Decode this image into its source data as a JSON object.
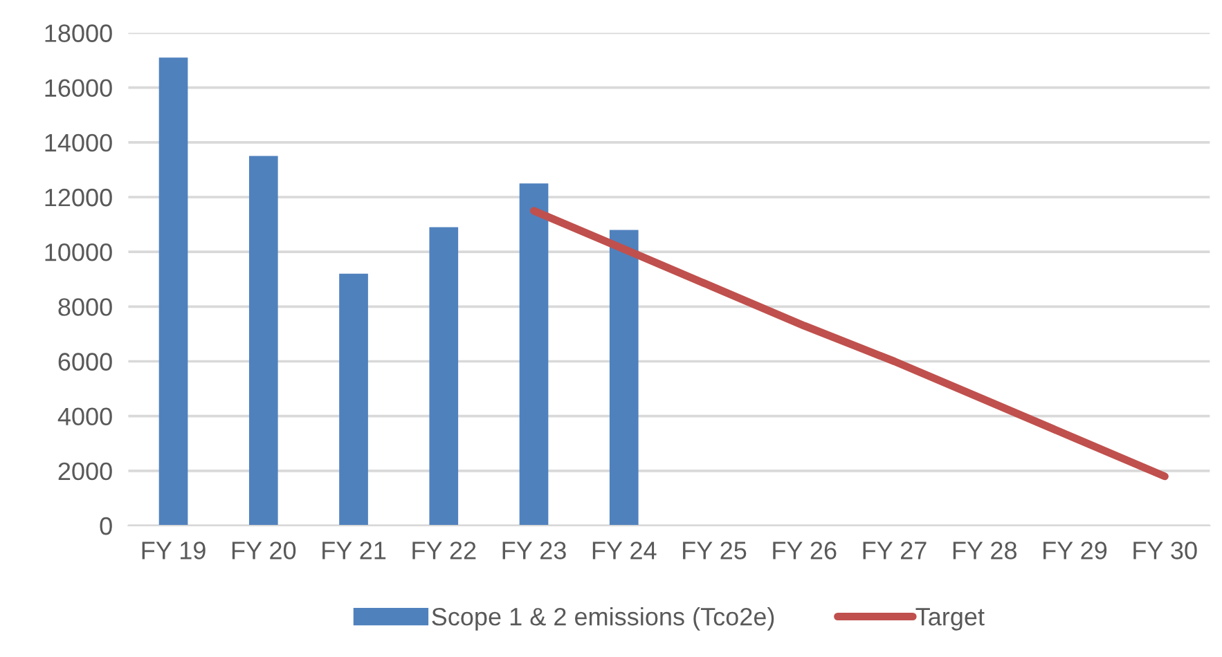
{
  "chart_data": {
    "type": "bar",
    "categories": [
      "FY 19",
      "FY 20",
      "FY 21",
      "FY 22",
      "FY 23",
      "FY 24",
      "FY 25",
      "FY 26",
      "FY 27",
      "FY 28",
      "FY 29",
      "FY 30"
    ],
    "series": [
      {
        "name": "Scope 1 & 2 emissions (Tco2e)",
        "color": "#4f81bd",
        "values": [
          17100,
          13500,
          9200,
          10900,
          12500,
          10800,
          null,
          null,
          null,
          null,
          null,
          null
        ]
      },
      {
        "name": "Target",
        "type": "line",
        "color": "#c0504d",
        "values": [
          null,
          null,
          null,
          null,
          11500,
          10100,
          8700,
          7300,
          6000,
          4600,
          3200,
          1800
        ]
      }
    ],
    "ylim": [
      0,
      18000
    ],
    "yticks": [
      0,
      2000,
      4000,
      6000,
      8000,
      10000,
      12000,
      14000,
      16000,
      18000
    ],
    "grid": "y",
    "legend": "bottom"
  }
}
